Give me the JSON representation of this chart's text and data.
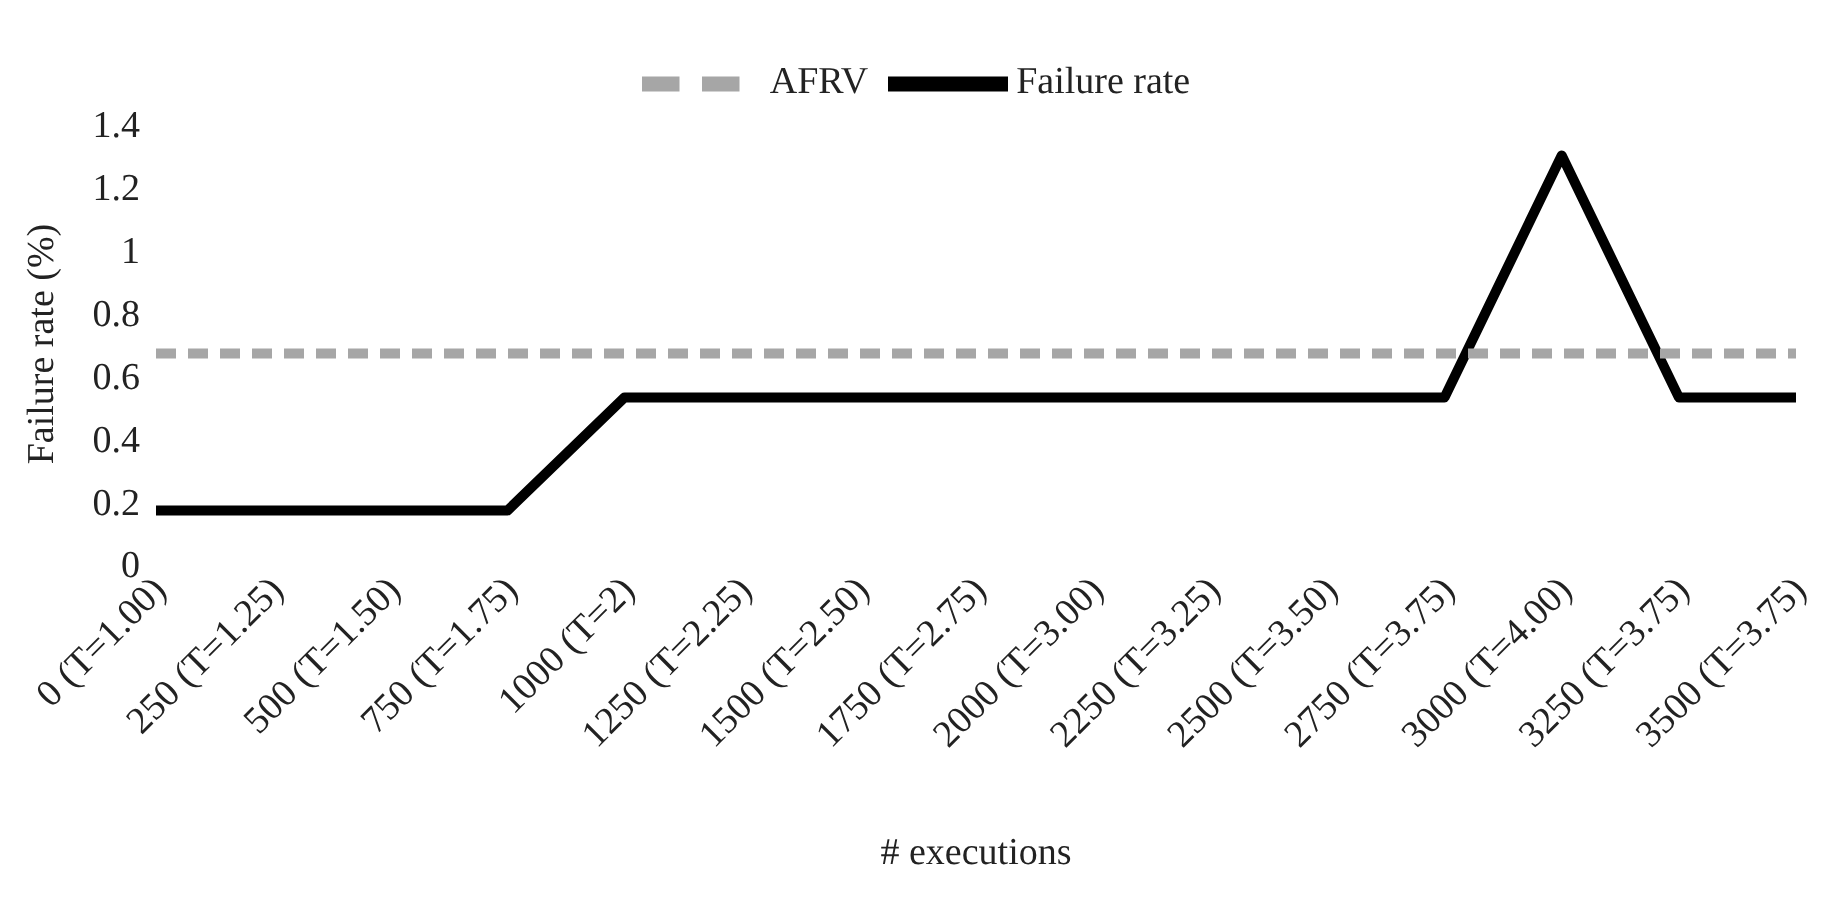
{
  "chart_data": {
    "type": "line",
    "xlabel": "# executions",
    "ylabel": "Failure rate (%)",
    "categories": [
      "0 (T=1.00)",
      "250 (T=1.25)",
      "500 (T=1.50)",
      "750 (T=1.75)",
      "1000 (T=2)",
      "1250 (T=2.25)",
      "1500 (T=2.50)",
      "1750 (T=2.75)",
      "2000 (T=3.00)",
      "2250 (T=3.25)",
      "2500 (T=3.50)",
      "2750 (T=3.75)",
      "3000 (T=4.00)",
      "3250 (T=3.75)",
      "3500 (T=3.75)"
    ],
    "series": [
      {
        "name": "Failure rate",
        "color": "#000000",
        "line_style": "solid",
        "values": [
          0.17,
          0.17,
          0.17,
          0.17,
          0.53,
          0.53,
          0.53,
          0.53,
          0.53,
          0.53,
          0.53,
          0.53,
          1.3,
          0.53,
          0.53
        ]
      },
      {
        "name": "AFRV",
        "color": "#a6a6a6",
        "line_style": "dashed",
        "values": [
          0.67,
          0.67,
          0.67,
          0.67,
          0.67,
          0.67,
          0.67,
          0.67,
          0.67,
          0.67,
          0.67,
          0.67,
          0.67,
          0.67,
          0.67
        ]
      }
    ],
    "ylim": [
      0,
      1.4
    ],
    "yticks": [
      0,
      0.2,
      0.4,
      0.6,
      0.8,
      1,
      1.2,
      1.4
    ],
    "grid": false,
    "legend": "top",
    "marker": "none"
  }
}
